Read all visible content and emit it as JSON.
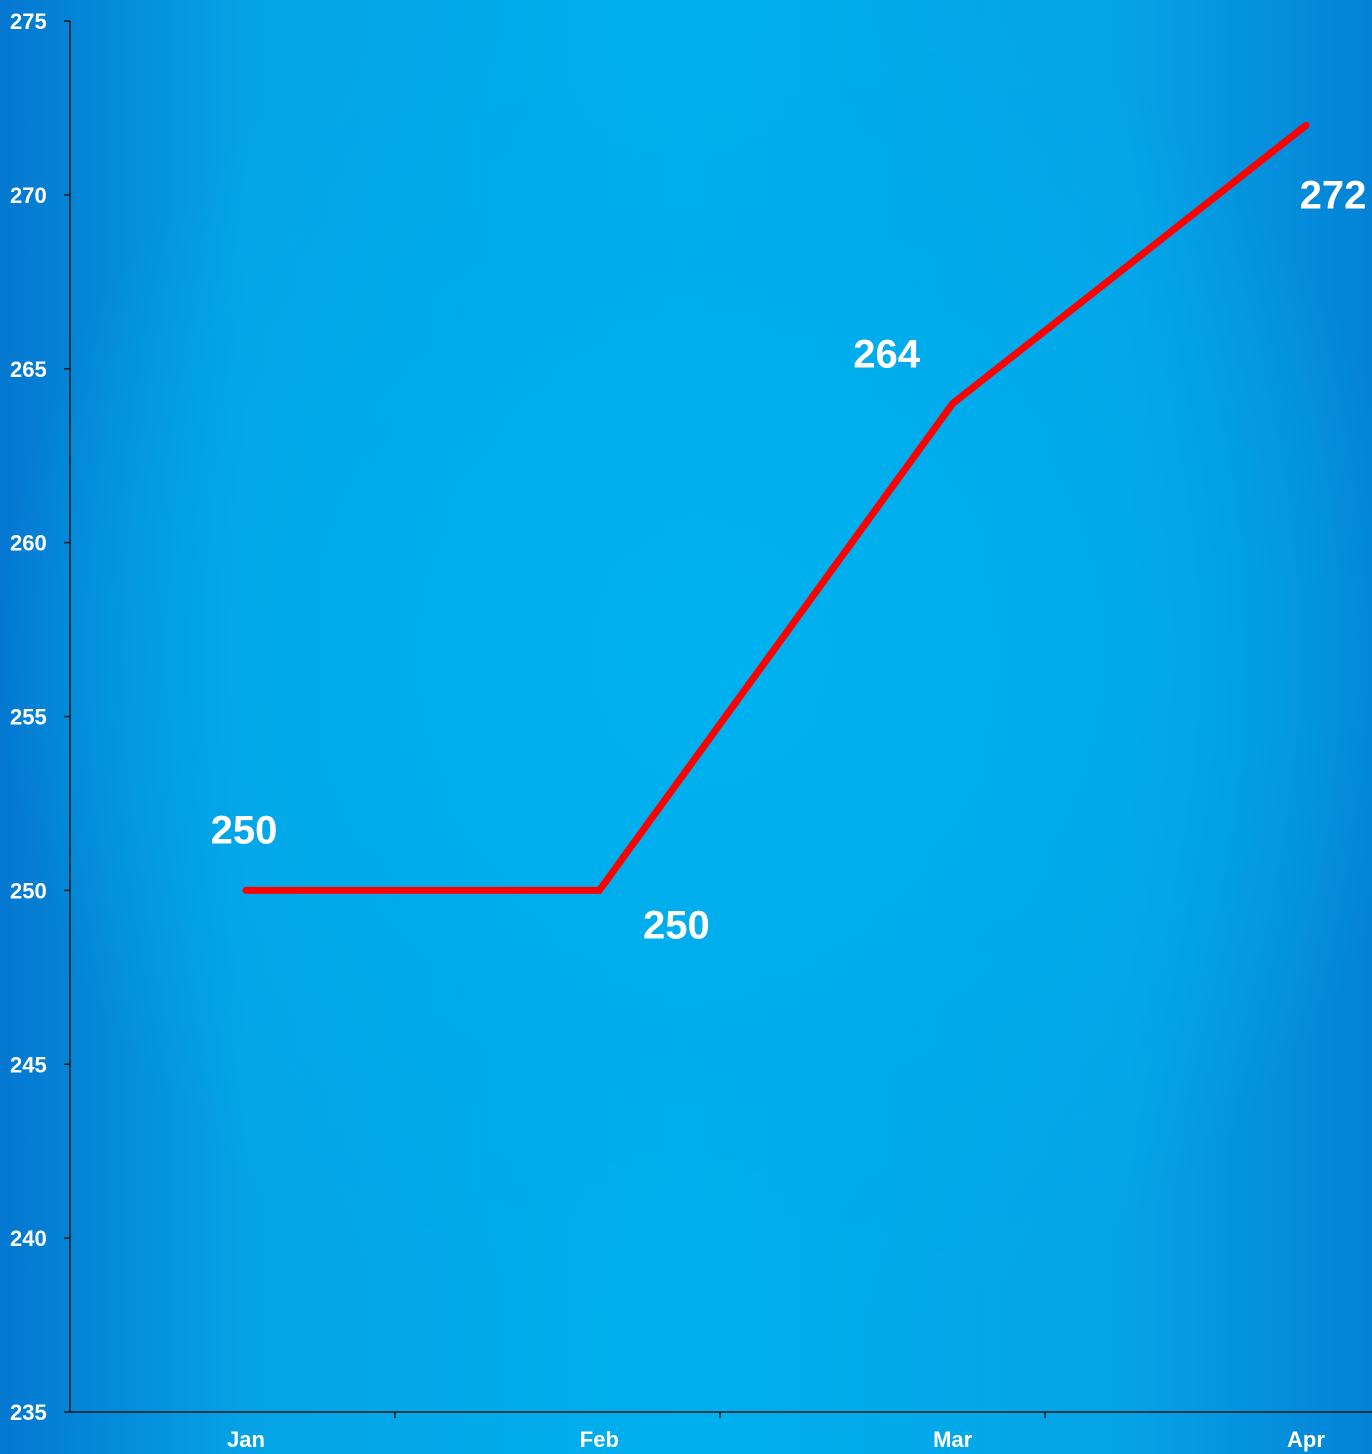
{
  "chart_data": {
    "type": "line",
    "categories": [
      "Jan",
      "Feb",
      "Mar",
      "Apr"
    ],
    "series": [
      {
        "values": [
          250,
          250,
          264,
          272
        ],
        "color": "#ff0000"
      }
    ],
    "data_labels": [
      "250",
      "250",
      "264",
      "272"
    ],
    "yticks": [
      "235",
      "240",
      "245",
      "250",
      "255",
      "260",
      "265",
      "270",
      "275"
    ],
    "ylim": [
      235,
      275
    ],
    "grid": false,
    "legend": "none",
    "background": "blue-gradient",
    "label_color": "#ffffff",
    "axis_color": "#1a1a1a"
  }
}
